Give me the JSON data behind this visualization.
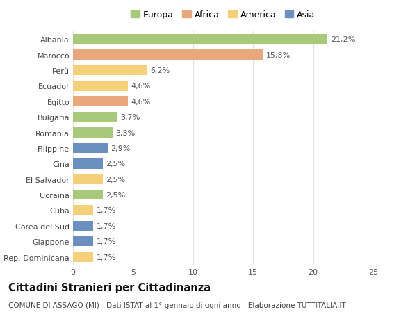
{
  "countries": [
    "Albania",
    "Marocco",
    "Perù",
    "Ecuador",
    "Egitto",
    "Bulgaria",
    "Romania",
    "Filippine",
    "Cina",
    "El Salvador",
    "Ucraina",
    "Cuba",
    "Corea del Sud",
    "Giappone",
    "Rep. Dominicana"
  ],
  "values": [
    21.2,
    15.8,
    6.2,
    4.6,
    4.6,
    3.7,
    3.3,
    2.9,
    2.5,
    2.5,
    2.5,
    1.7,
    1.7,
    1.7,
    1.7
  ],
  "labels": [
    "21,2%",
    "15,8%",
    "6,2%",
    "4,6%",
    "4,6%",
    "3,7%",
    "3,3%",
    "2,9%",
    "2,5%",
    "2,5%",
    "2,5%",
    "1,7%",
    "1,7%",
    "1,7%",
    "1,7%"
  ],
  "continents": [
    "Europa",
    "Africa",
    "America",
    "America",
    "Africa",
    "Europa",
    "Europa",
    "Asia",
    "Asia",
    "America",
    "Europa",
    "America",
    "Asia",
    "Asia",
    "America"
  ],
  "continent_colors": {
    "Europa": "#a8c87a",
    "Africa": "#e8a87c",
    "America": "#f5d07a",
    "Asia": "#6b8fbe"
  },
  "legend_order": [
    "Europa",
    "Africa",
    "America",
    "Asia"
  ],
  "title": "Cittadini Stranieri per Cittadinanza",
  "subtitle": "COMUNE DI ASSAGO (MI) - Dati ISTAT al 1° gennaio di ogni anno - Elaborazione TUTTITALIA.IT",
  "xlim": [
    0,
    25
  ],
  "xticks": [
    0,
    5,
    10,
    15,
    20,
    25
  ],
  "bg_color": "#ffffff",
  "grid_color": "#e0e0e0",
  "bar_height": 0.65,
  "label_fontsize": 8.0,
  "tick_fontsize": 8.0,
  "title_fontsize": 10.5,
  "subtitle_fontsize": 7.5,
  "legend_fontsize": 9
}
